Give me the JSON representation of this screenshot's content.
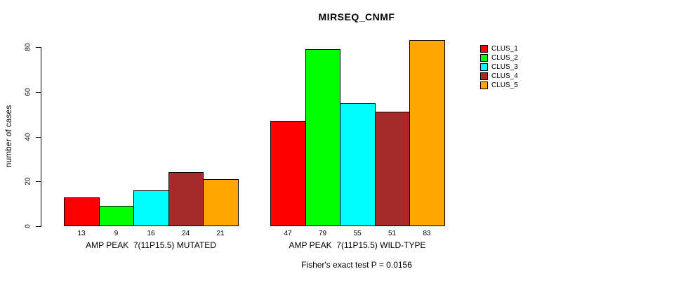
{
  "chart_data": {
    "type": "bar",
    "title": "MIRSEQ_CNMF",
    "ylabel": "number of cases",
    "ylim": [
      0,
      80
    ],
    "yticks": [
      0,
      20,
      40,
      60,
      80
    ],
    "grid": false,
    "legend_position": "right-outside",
    "caption": "Fisher's exact test P = 0.0156",
    "series": [
      {
        "name": "CLUS_1",
        "color": "#FF0000"
      },
      {
        "name": "CLUS_2",
        "color": "#00FF00"
      },
      {
        "name": "CLUS_3",
        "color": "#00FFFF"
      },
      {
        "name": "CLUS_4",
        "color": "#A52A2A"
      },
      {
        "name": "CLUS_5",
        "color": "#FFA500"
      }
    ],
    "groups": [
      {
        "label": "AMP PEAK  7(11P15.5) MUTATED",
        "values": [
          13,
          9,
          16,
          24,
          21
        ]
      },
      {
        "label": "AMP PEAK  7(11P15.5) WILD-TYPE",
        "values": [
          47,
          79,
          55,
          51,
          83
        ]
      }
    ]
  }
}
